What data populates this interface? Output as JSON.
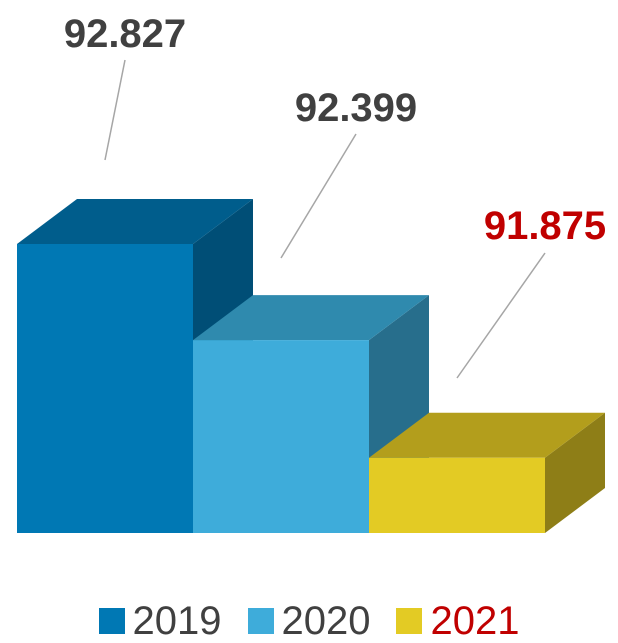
{
  "chart_data": {
    "type": "bar",
    "categories": [
      "2019",
      "2020",
      "2021"
    ],
    "values": [
      92.827,
      92.399,
      91.875
    ],
    "value_labels": [
      "92.827",
      "92.399",
      "91.875"
    ],
    "title": "",
    "xlabel": "",
    "ylabel": "",
    "three_d": true,
    "grid": false,
    "legend_position": "bottom",
    "colors": {
      "2019": {
        "front": "#0078B4",
        "top": "#005D8C",
        "side": "#004E76",
        "label": "#404040"
      },
      "2020": {
        "front": "#3EACDA",
        "top": "#2F8AAE",
        "side": "#276E8C",
        "label": "#404040"
      },
      "2021": {
        "front": "#E3CB24",
        "top": "#B39E1C",
        "side": "#8E7E17",
        "label": "#C00000"
      }
    }
  },
  "legend": {
    "items": [
      {
        "label": "2019",
        "color": "#0078B4",
        "text_color": "#404040"
      },
      {
        "label": "2020",
        "color": "#3EACDA",
        "text_color": "#404040"
      },
      {
        "label": "2021",
        "color": "#E3CB24",
        "text_color": "#C00000"
      }
    ]
  }
}
